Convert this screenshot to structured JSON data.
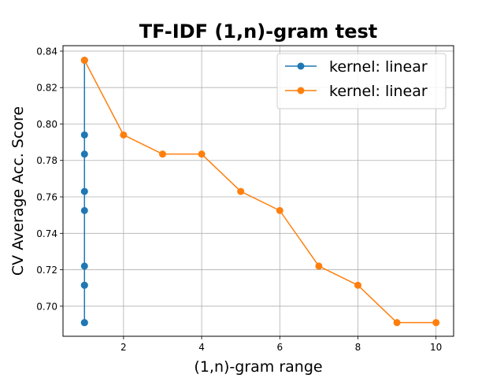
{
  "chart_data": {
    "type": "line",
    "title": "TF-IDF (1,n)-gram test",
    "xlabel": "(1,n)-gram range",
    "ylabel": "CV Average Acc. Score",
    "xlim": [
      0.45,
      10.45
    ],
    "ylim": [
      0.6835,
      0.843
    ],
    "xticks": [
      2,
      4,
      6,
      8,
      10
    ],
    "yticks": [
      0.7,
      0.72,
      0.74,
      0.76,
      0.78,
      0.8,
      0.82,
      0.84
    ],
    "grid": true,
    "legend_position": "top-right",
    "series": [
      {
        "name": "kernel: linear",
        "color": "#1f77b4",
        "marker": "circle",
        "x": [
          1,
          1,
          1,
          1,
          1,
          1,
          1,
          1,
          1,
          1
        ],
        "y": [
          0.835,
          0.794,
          0.7835,
          0.763,
          0.7525,
          0.722,
          0.7115,
          0.691,
          0.7115,
          0.691
        ]
      },
      {
        "name": "kernel: linear",
        "color": "#ff7f0e",
        "marker": "circle",
        "x": [
          1,
          2,
          3,
          4,
          5,
          6,
          7,
          8,
          9,
          10
        ],
        "y": [
          0.835,
          0.794,
          0.7835,
          0.7835,
          0.763,
          0.7525,
          0.722,
          0.7115,
          0.691,
          0.691
        ]
      }
    ]
  }
}
